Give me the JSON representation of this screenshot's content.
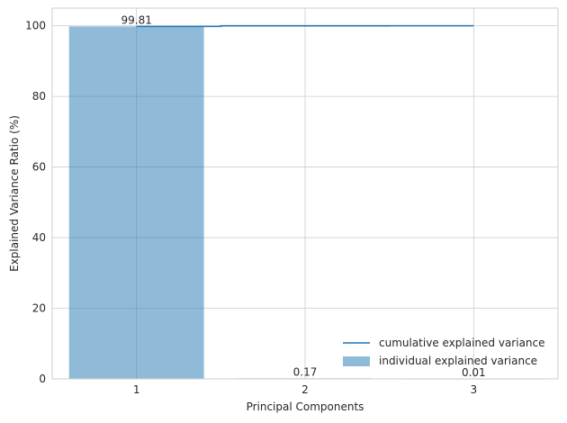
{
  "chart_data": {
    "type": "bar",
    "title": "",
    "xlabel": "Principal Components",
    "ylabel": "Explained Variance Ratio (%)",
    "categories": [
      "1",
      "2",
      "3"
    ],
    "x_range": [
      0.5,
      3.5
    ],
    "ylim": [
      0,
      105
    ],
    "yticks": [
      0,
      20,
      40,
      60,
      80,
      100
    ],
    "grid": true,
    "legend_position": "bottom-right",
    "series": [
      {
        "name": "individual explained variance",
        "kind": "bar",
        "values": [
          99.81,
          0.17,
          0.01
        ],
        "data_labels": [
          "99.81",
          "0.17",
          "0.01"
        ],
        "color": "#1f77b4",
        "alpha": 0.5
      },
      {
        "name": "cumulative explained variance",
        "kind": "step",
        "values": [
          99.81,
          99.98,
          100.0
        ],
        "color": "#1f77b4"
      }
    ]
  }
}
